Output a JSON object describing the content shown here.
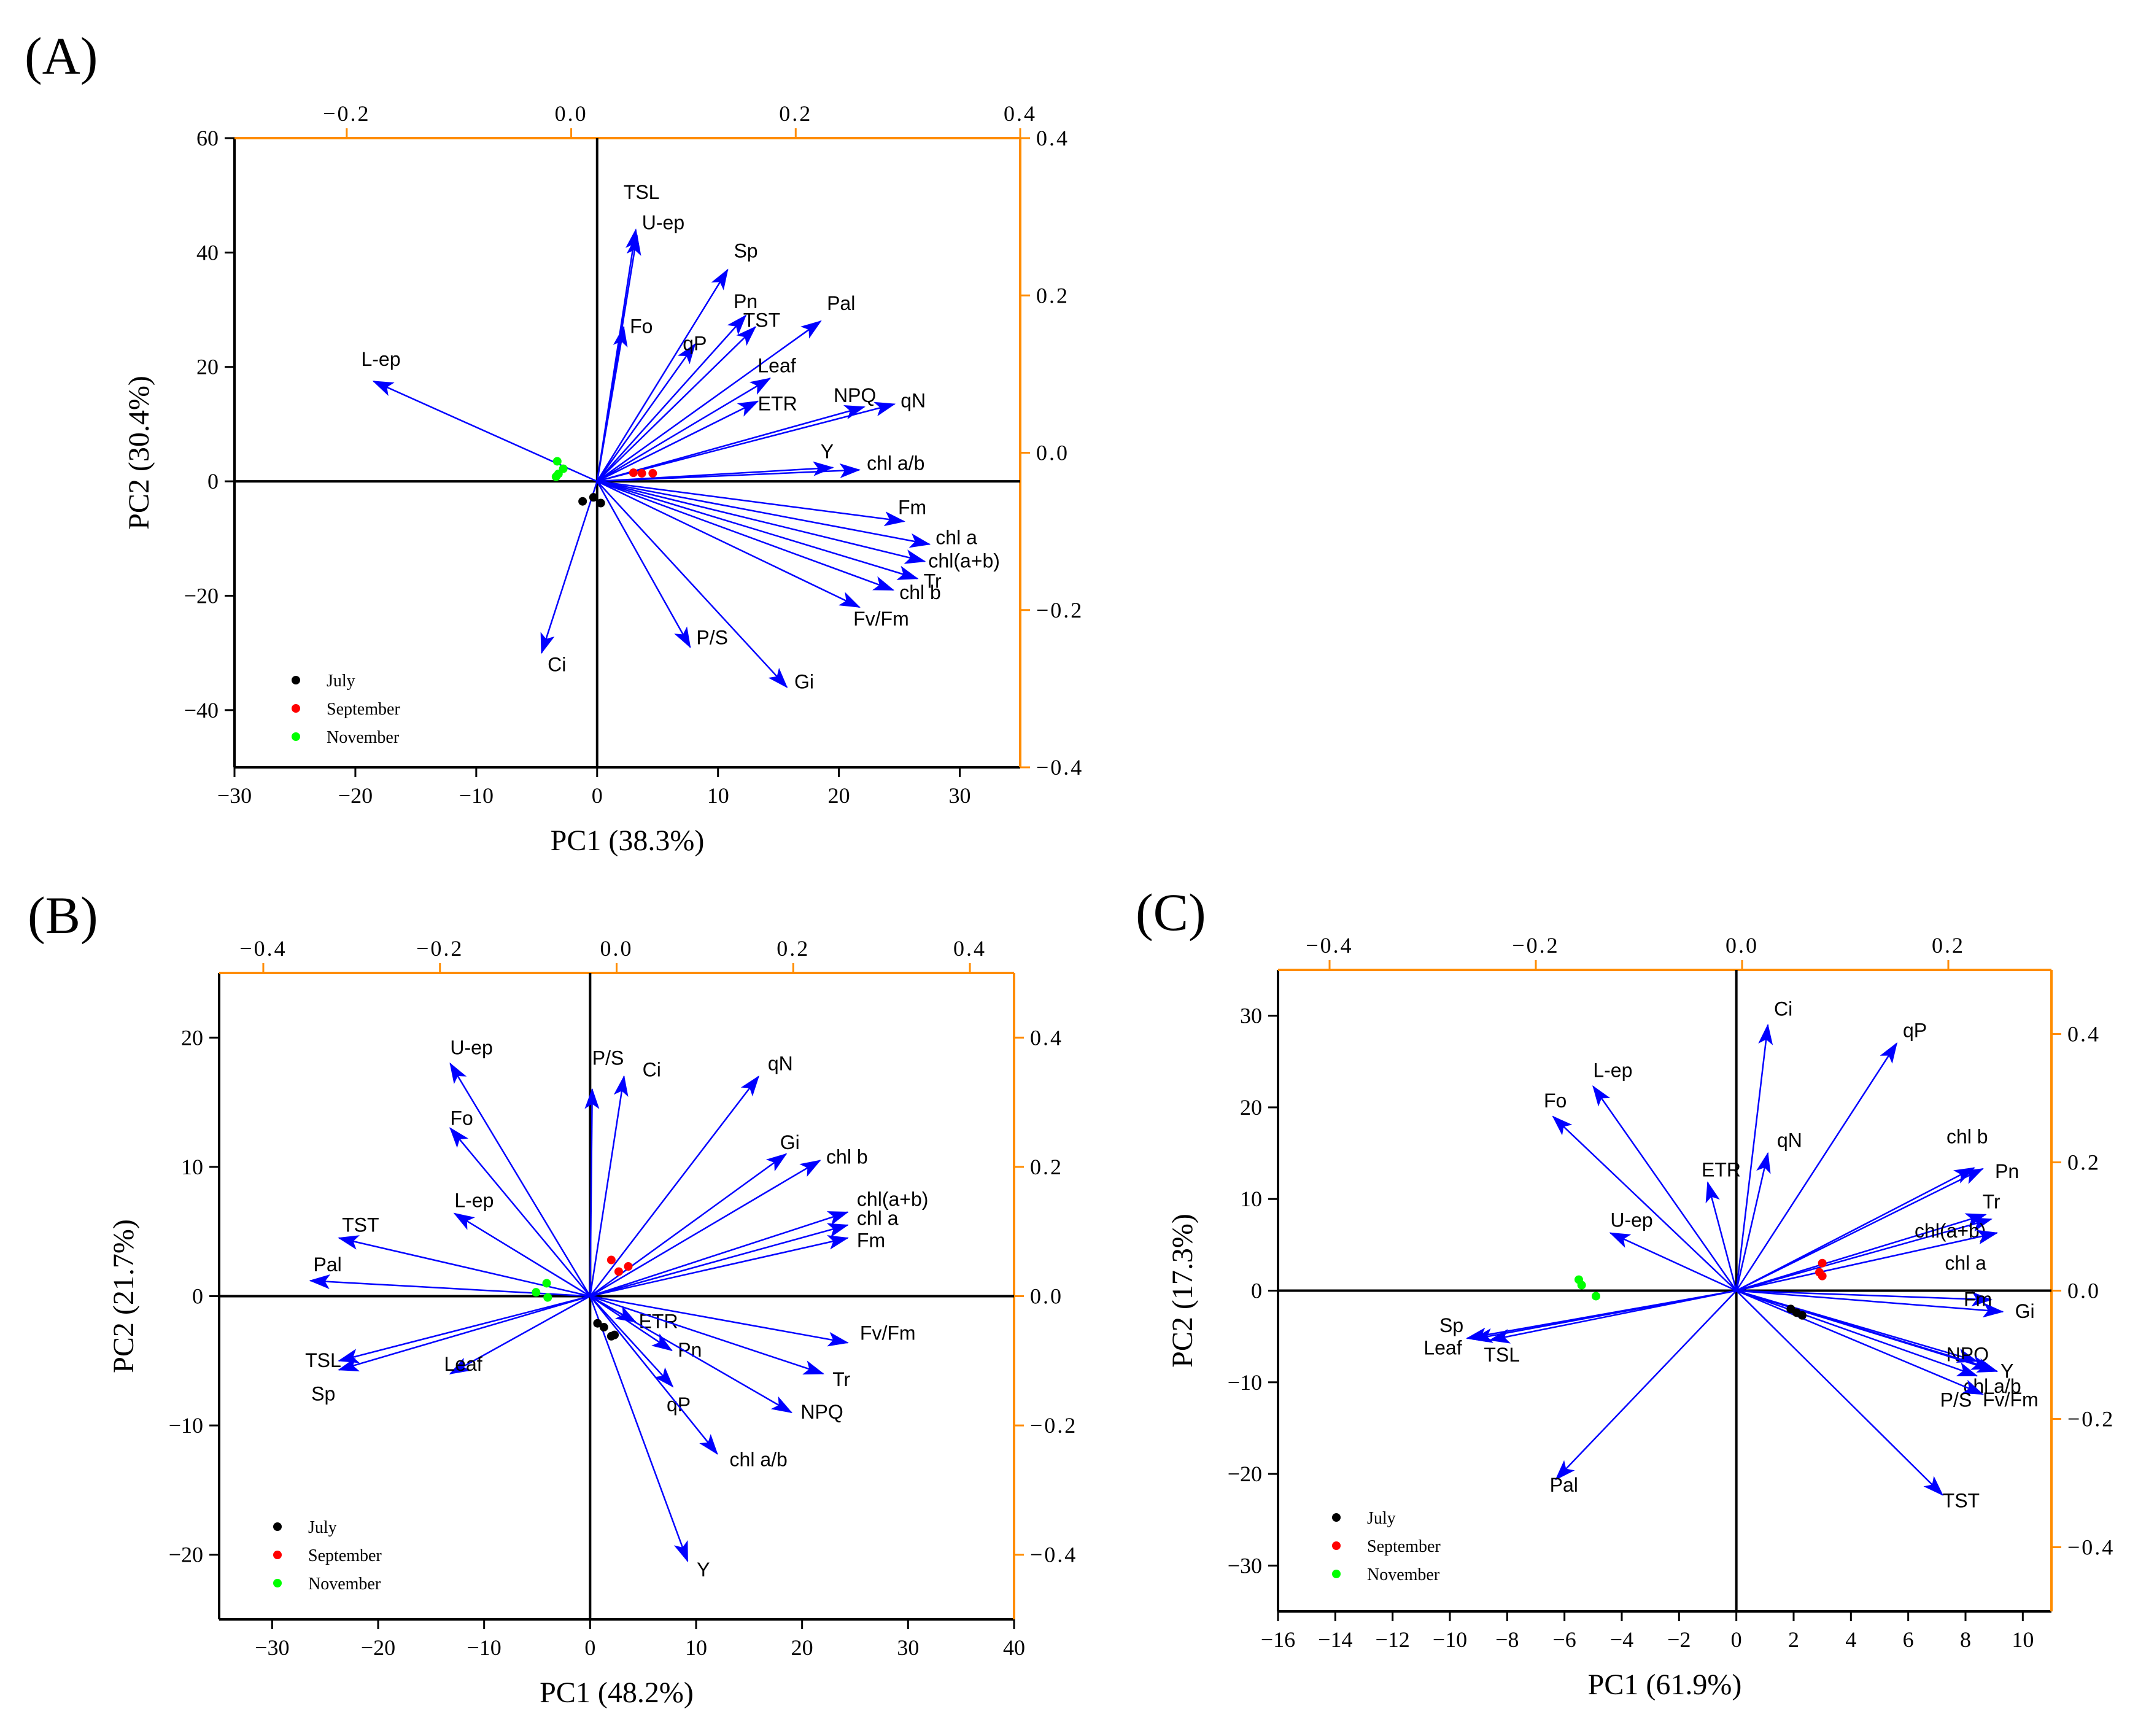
{
  "figure": {
    "colors": {
      "arrow": "#0000ff",
      "secondary_axis": "#ff8c00",
      "july": "#000000",
      "september": "#ff0000",
      "november": "#00ff00"
    },
    "legend_items": [
      "July",
      "September",
      "November"
    ]
  },
  "chart_data": [
    {
      "panel_label": "(A)",
      "type": "scatter",
      "title": "",
      "xlabel": "PC1 (38.3%)",
      "ylabel": "PC2 (30.4%)",
      "xlim": [
        -30,
        35
      ],
      "ylim": [
        -50,
        60
      ],
      "xticks": [
        "-30",
        "-20",
        "-10",
        "0",
        "10",
        "20",
        "30"
      ],
      "yticks": [
        "60",
        "40",
        "20",
        "0",
        "-20",
        "-40"
      ],
      "secondary_xlim": [
        -0.3,
        0.4
      ],
      "secondary_xticks": [
        "-0.2",
        "0.0",
        "0.2",
        "0.4"
      ],
      "secondary_ylim": [
        -0.4,
        0.4
      ],
      "secondary_yticks": [
        "0.4",
        "0.2",
        "0.0",
        "-0.2",
        "-0.4"
      ],
      "legend": "bottom-left",
      "loadings": [
        {
          "label": "TSL",
          "x": 3.2,
          "y": 44
        },
        {
          "label": "U-ep",
          "x": 3.3,
          "y": 43
        },
        {
          "label": "Fo",
          "x": 2.2,
          "y": 27
        },
        {
          "label": "Sp",
          "x": 10.8,
          "y": 37
        },
        {
          "label": "Pn",
          "x": 12.3,
          "y": 29
        },
        {
          "label": "TST",
          "x": 13.1,
          "y": 27
        },
        {
          "label": "Pal",
          "x": 18.5,
          "y": 28
        },
        {
          "label": "qP",
          "x": 8.1,
          "y": 24
        },
        {
          "label": "Leaf",
          "x": 14.3,
          "y": 18
        },
        {
          "label": "ETR",
          "x": 13.3,
          "y": 14
        },
        {
          "label": "NPQ",
          "x": 22.1,
          "y": 13
        },
        {
          "label": "qN",
          "x": 24.6,
          "y": 13.5
        },
        {
          "label": "Y",
          "x": 19.5,
          "y": 2.4
        },
        {
          "label": "chl a/b",
          "x": 21.7,
          "y": 2
        },
        {
          "label": "L-ep",
          "x": -18.5,
          "y": 17.5
        },
        {
          "label": "Fm",
          "x": 25.4,
          "y": -7
        },
        {
          "label": "chl a",
          "x": 27.5,
          "y": -11
        },
        {
          "label": "chl(a+b)",
          "x": 27.1,
          "y": -14
        },
        {
          "label": "Tr",
          "x": 26.5,
          "y": -17
        },
        {
          "label": "chl b",
          "x": 24.5,
          "y": -19
        },
        {
          "label": "Fv/Fm",
          "x": 21.7,
          "y": -22
        },
        {
          "label": "P/S",
          "x": 7.7,
          "y": -29
        },
        {
          "label": "Gi",
          "x": 15.7,
          "y": -36
        },
        {
          "label": "Ci",
          "x": -4.6,
          "y": -30
        }
      ],
      "series": [
        {
          "name": "July",
          "x": [
            -1.2,
            -0.3,
            0.3
          ],
          "y": [
            -3.5,
            -2.8,
            -3.8
          ]
        },
        {
          "name": "September",
          "x": [
            3.0,
            3.7,
            4.6
          ],
          "y": [
            1.5,
            1.4,
            1.4
          ]
        },
        {
          "name": "November",
          "x": [
            -3.3,
            -2.8,
            -3.2,
            -3.4
          ],
          "y": [
            3.5,
            2.2,
            1.3,
            0.8
          ]
        }
      ]
    },
    {
      "panel_label": "(B)",
      "type": "scatter",
      "title": "",
      "xlabel": "PC1 (48.2%)",
      "ylabel": "PC2 (21.7%)",
      "xlim": [
        -35,
        40
      ],
      "ylim": [
        -25,
        25
      ],
      "xticks": [
        "-30",
        "-20",
        "-10",
        "0",
        "10",
        "20",
        "30",
        "40"
      ],
      "yticks": [
        "20",
        "10",
        "0",
        "-10",
        "-20"
      ],
      "secondary_xlim": [
        -0.45,
        0.45
      ],
      "secondary_xticks": [
        "-0.4",
        "-0.2",
        "0.0",
        "0.2",
        "0.4"
      ],
      "secondary_ylim": [
        -0.5,
        0.5
      ],
      "secondary_yticks": [
        "0.4",
        "0.2",
        "0.0",
        "-0.2",
        "-0.4"
      ],
      "legend": "bottom-left",
      "loadings": [
        {
          "label": "U-ep",
          "x": -13.2,
          "y": 18
        },
        {
          "label": "Fo",
          "x": -13.2,
          "y": 13
        },
        {
          "label": "P/S",
          "x": 0.2,
          "y": 16
        },
        {
          "label": "Ci",
          "x": 3.2,
          "y": 17
        },
        {
          "label": "qN",
          "x": 15.9,
          "y": 17
        },
        {
          "label": "Gi",
          "x": 18.5,
          "y": 11
        },
        {
          "label": "chl b",
          "x": 21.7,
          "y": 10.5
        },
        {
          "label": "chl(a+b)",
          "x": 24.3,
          "y": 6.5
        },
        {
          "label": "chl a",
          "x": 24.3,
          "y": 5.5
        },
        {
          "label": "Fm",
          "x": 24.3,
          "y": 4.5
        },
        {
          "label": "L-ep",
          "x": -12.8,
          "y": 6.4
        },
        {
          "label": "TST",
          "x": -23.7,
          "y": 4.5
        },
        {
          "label": "Pal",
          "x": -26.4,
          "y": 1.2
        },
        {
          "label": "TSL",
          "x": -23.7,
          "y": -5
        },
        {
          "label": "Sp",
          "x": -23.7,
          "y": -5.7
        },
        {
          "label": "Leaf",
          "x": -13.2,
          "y": -6
        },
        {
          "label": "ETR",
          "x": 4.3,
          "y": -2
        },
        {
          "label": "Pn",
          "x": 7.7,
          "y": -4.2
        },
        {
          "label": "qP",
          "x": 7.8,
          "y": -7
        },
        {
          "label": "Fv/Fm",
          "x": 24.3,
          "y": -3.6
        },
        {
          "label": "Tr",
          "x": 22.0,
          "y": -6
        },
        {
          "label": "NPQ",
          "x": 19.0,
          "y": -9
        },
        {
          "label": "chl a/b",
          "x": 12.0,
          "y": -12.2
        },
        {
          "label": "Y",
          "x": 9.2,
          "y": -20.5
        }
      ],
      "series": [
        {
          "name": "July",
          "x": [
            0.7,
            1.3,
            2.0,
            2.3
          ],
          "y": [
            -2.1,
            -2.4,
            -3.1,
            -3.0
          ]
        },
        {
          "name": "September",
          "x": [
            2.0,
            2.7,
            3.6
          ],
          "y": [
            2.8,
            1.9,
            2.3
          ]
        },
        {
          "name": "November",
          "x": [
            -5.1,
            -4.1,
            -4.0
          ],
          "y": [
            0.3,
            1.0,
            -0.1
          ]
        }
      ]
    },
    {
      "panel_label": "(C)",
      "type": "scatter",
      "title": "",
      "xlabel": "PC1 (61.9%)",
      "ylabel": "PC2 (17.3%)",
      "xlim": [
        -16,
        11
      ],
      "ylim": [
        -35,
        35
      ],
      "xticks": [
        "-16",
        "-14",
        "-12",
        "-10",
        "-8",
        "-6",
        "-4",
        "-2",
        "0",
        "2",
        "4",
        "6",
        "8",
        "10"
      ],
      "yticks": [
        "30",
        "20",
        "10",
        "0",
        "-10",
        "-20",
        "-30"
      ],
      "secondary_xlim": [
        -0.45,
        0.3
      ],
      "secondary_xticks": [
        "-0.4",
        "-0.2",
        "0.0",
        "0.2"
      ],
      "secondary_ylim": [
        -0.5,
        0.5
      ],
      "secondary_yticks": [
        "0.4",
        "0.2",
        "0.0",
        "-0.2",
        "-0.4"
      ],
      "legend": "bottom-left",
      "loadings": [
        {
          "label": "Ci",
          "x": 1.1,
          "y": 29
        },
        {
          "label": "qP",
          "x": 5.6,
          "y": 27
        },
        {
          "label": "L-ep",
          "x": -5.0,
          "y": 22.3
        },
        {
          "label": "Fo",
          "x": -6.4,
          "y": 19
        },
        {
          "label": "qN",
          "x": 1.1,
          "y": 15
        },
        {
          "label": "ETR",
          "x": -1.0,
          "y": 11.8
        },
        {
          "label": "chl b",
          "x": 8.3,
          "y": 13.4
        },
        {
          "label": "Pn",
          "x": 8.6,
          "y": 13.3
        },
        {
          "label": "Tr",
          "x": 8.7,
          "y": 8.3
        },
        {
          "label": "chl(a+b)",
          "x": 8.9,
          "y": 7.8
        },
        {
          "label": "chl a",
          "x": 9.1,
          "y": 6.3
        },
        {
          "label": "U-ep",
          "x": -4.4,
          "y": 6.3
        },
        {
          "label": "Fm",
          "x": 8.9,
          "y": -1.0
        },
        {
          "label": "Gi",
          "x": 9.3,
          "y": -2.3
        },
        {
          "label": "NPQ",
          "x": 8.4,
          "y": -7.7
        },
        {
          "label": "Y",
          "x": 8.9,
          "y": -8.5
        },
        {
          "label": "chl a/b",
          "x": 9.1,
          "y": -8.8
        },
        {
          "label": "Fv/Fm",
          "x": 8.6,
          "y": -11.3
        },
        {
          "label": "P/S",
          "x": 8.4,
          "y": -9.3
        },
        {
          "label": "TST",
          "x": 7.2,
          "y": -22.3
        },
        {
          "label": "Sp",
          "x": -9.4,
          "y": -5.2
        },
        {
          "label": "Leaf",
          "x": -9.2,
          "y": -5.3
        },
        {
          "label": "TSL",
          "x": -8.6,
          "y": -5.4
        },
        {
          "label": "Pal",
          "x": -6.3,
          "y": -20.6
        }
      ],
      "series": [
        {
          "name": "July",
          "x": [
            1.9,
            2.1,
            2.3
          ],
          "y": [
            -2.0,
            -2.4,
            -2.7
          ]
        },
        {
          "name": "September",
          "x": [
            2.9,
            3.0,
            3.0
          ],
          "y": [
            2.0,
            1.6,
            3.0
          ]
        },
        {
          "name": "November",
          "x": [
            -5.5,
            -5.4,
            -4.9
          ],
          "y": [
            1.2,
            0.6,
            -0.6
          ]
        }
      ]
    }
  ]
}
